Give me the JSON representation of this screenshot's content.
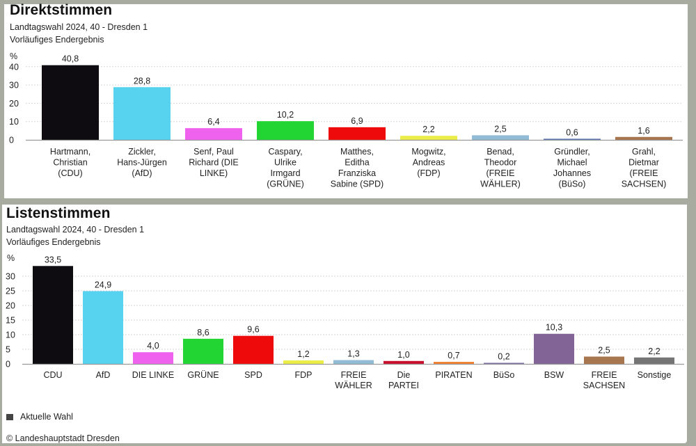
{
  "colors": {
    "frame": "#a8aca0",
    "grid": "#d6d6d6",
    "axis": "#999999",
    "legend_swatch": "#444444"
  },
  "panels": [
    {
      "title": "Direktstimmen",
      "subtitle1": "Landtagswahl 2024, 40 - Dresden 1",
      "subtitle2": "Vorläufiges Endergebnis"
    },
    {
      "title": "Listenstimmen",
      "subtitle1": "Landtagswahl 2024, 40 - Dresden 1",
      "subtitle2": "Vorläufiges Endergebnis"
    }
  ],
  "legend": {
    "label": "Aktuelle Wahl"
  },
  "footer": {
    "copyright": "© Landeshauptstadt Dresden"
  },
  "chart_data": [
    {
      "type": "bar",
      "title": "Direktstimmen",
      "subtitle": "Landtagswahl 2024, 40 - Dresden 1 · Vorläufiges Endergebnis",
      "ylabel": "%",
      "ylim": [
        0,
        40
      ],
      "yticks": [
        0,
        10,
        20,
        30,
        40
      ],
      "grid": true,
      "categories": [
        [
          "Hartmann,",
          "Christian",
          "(CDU)"
        ],
        [
          "Zickler,",
          "Hans-Jürgen",
          "(AfD)"
        ],
        [
          "Senf, Paul",
          "Richard (DIE",
          "LINKE)"
        ],
        [
          "Caspary,",
          "Ulrike",
          "Irmgard",
          "(GRÜNE)"
        ],
        [
          "Matthes,",
          "Editha",
          "Franziska",
          "Sabine (SPD)"
        ],
        [
          "Mogwitz,",
          "Andreas",
          "(FDP)"
        ],
        [
          "Benad,",
          "Theodor",
          "(FREIE",
          "WÄHLER)"
        ],
        [
          "Gründler,",
          "Michael",
          "Johannes",
          "(BüSo)"
        ],
        [
          "Grahl,",
          "Dietmar",
          "(FREIE",
          "SACHSEN)"
        ]
      ],
      "values": [
        40.8,
        28.8,
        6.4,
        10.2,
        6.9,
        2.2,
        2.5,
        0.6,
        1.6
      ],
      "labels": [
        "40,8",
        "28,8",
        "6,4",
        "10,2",
        "6,9",
        "2,2",
        "2,5",
        "0,6",
        "1,6"
      ],
      "bar_colors": [
        "#0e0c10",
        "#57d3ef",
        "#ef62ee",
        "#22d533",
        "#ee0a0a",
        "#ecee48",
        "#92bcd6",
        "#5a74b4",
        "#a8764e"
      ],
      "legend": [
        "Aktuelle Wahl"
      ]
    },
    {
      "type": "bar",
      "title": "Listenstimmen",
      "subtitle": "Landtagswahl 2024, 40 - Dresden 1 · Vorläufiges Endergebnis",
      "ylabel": "%",
      "ylim": [
        0,
        33.5
      ],
      "yticks": [
        0,
        5,
        10,
        15,
        20,
        25,
        30
      ],
      "grid": true,
      "categories": [
        [
          "CDU"
        ],
        [
          "AfD"
        ],
        [
          "DIE LINKE"
        ],
        [
          "GRÜNE"
        ],
        [
          "SPD"
        ],
        [
          "FDP"
        ],
        [
          "FREIE",
          "WÄHLER"
        ],
        [
          "Die",
          "PARTEI"
        ],
        [
          "PIRATEN"
        ],
        [
          "BüSo"
        ],
        [
          "BSW"
        ],
        [
          "FREIE",
          "SACHSEN"
        ],
        [
          "Sonstige"
        ]
      ],
      "values": [
        33.5,
        24.9,
        4.0,
        8.6,
        9.6,
        1.2,
        1.3,
        1.0,
        0.7,
        0.2,
        10.3,
        2.5,
        2.2
      ],
      "labels": [
        "33,5",
        "24,9",
        "4,0",
        "8,6",
        "9,6",
        "1,2",
        "1,3",
        "1,0",
        "0,7",
        "0,2",
        "10,3",
        "2,5",
        "2,2"
      ],
      "bar_colors": [
        "#0e0c10",
        "#57d3ef",
        "#ef62ee",
        "#22d533",
        "#ee0a0a",
        "#ecee48",
        "#92bcd6",
        "#c8102e",
        "#f08030",
        "#7a6aa0",
        "#836496",
        "#a8764e",
        "#757575"
      ],
      "legend": [
        "Aktuelle Wahl"
      ]
    }
  ]
}
